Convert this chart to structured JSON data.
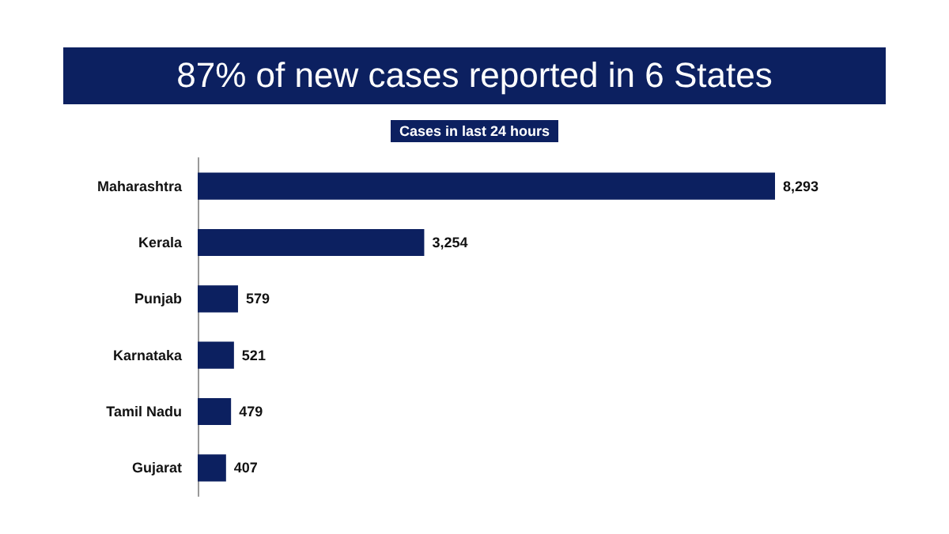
{
  "chart_data": {
    "type": "bar",
    "orientation": "horizontal",
    "title": "87% of new cases reported in 6 States",
    "subtitle": "Cases in last 24 hours",
    "categories": [
      "Maharashtra",
      "Kerala",
      "Punjab",
      "Karnataka",
      "Tamil Nadu",
      "Gujarat"
    ],
    "values": [
      8293,
      3254,
      579,
      521,
      479,
      407
    ],
    "value_labels": [
      "8,293",
      "3,254",
      "579",
      "521",
      "479",
      "407"
    ],
    "color": "#0c2060"
  }
}
